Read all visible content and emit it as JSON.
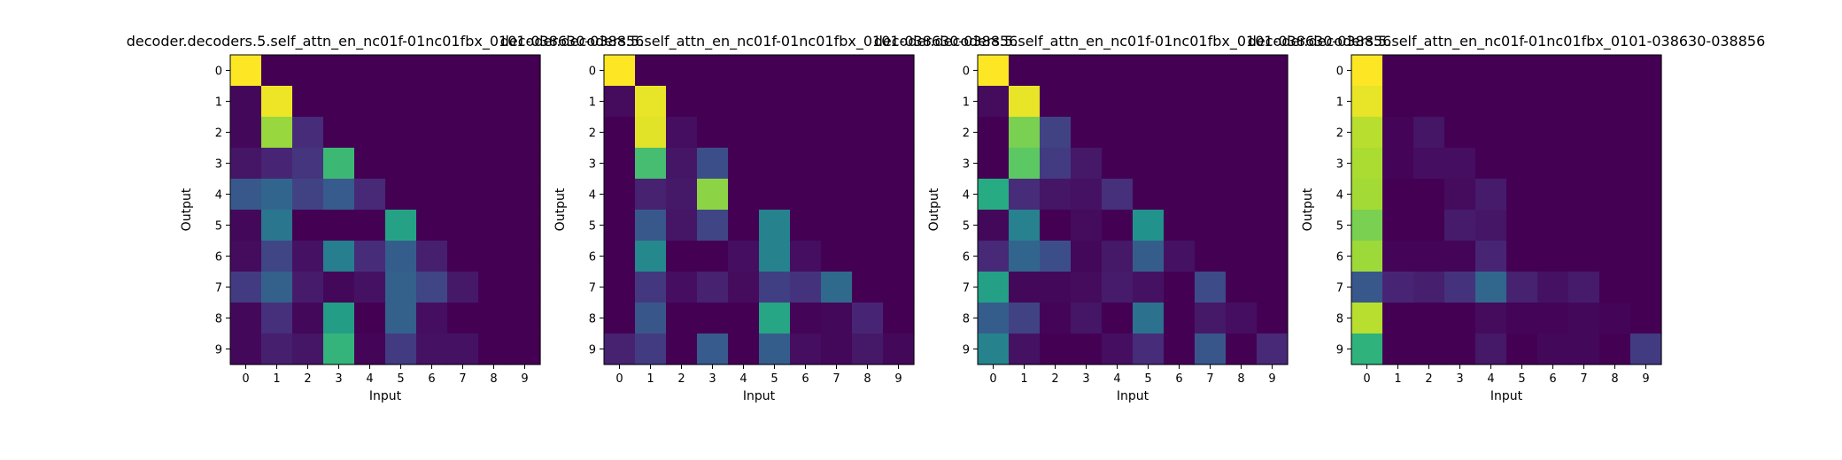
{
  "chart_data": [
    {
      "type": "heatmap",
      "title": "decoder.decoders.5.self_attn_en_nc01f-01nc01fbx_0101-038630-038856",
      "xlabel": "Input",
      "ylabel": "Output",
      "x_ticks": [
        "0",
        "1",
        "2",
        "3",
        "4",
        "5",
        "6",
        "7",
        "8",
        "9"
      ],
      "y_ticks": [
        "0",
        "1",
        "2",
        "3",
        "4",
        "5",
        "6",
        "7",
        "8",
        "9"
      ],
      "colormap": "viridis",
      "vmin": 0,
      "vmax": 1,
      "values": [
        [
          1.0,
          0.0,
          0.0,
          0.0,
          0.0,
          0.0,
          0.0,
          0.0,
          0.0,
          0.0
        ],
        [
          0.02,
          0.98,
          0.0,
          0.0,
          0.0,
          0.0,
          0.0,
          0.0,
          0.0,
          0.0
        ],
        [
          0.02,
          0.85,
          0.13,
          0.0,
          0.0,
          0.0,
          0.0,
          0.0,
          0.0,
          0.0
        ],
        [
          0.06,
          0.11,
          0.16,
          0.68,
          0.0,
          0.0,
          0.0,
          0.0,
          0.0,
          0.0
        ],
        [
          0.28,
          0.33,
          0.2,
          0.29,
          0.12,
          0.0,
          0.0,
          0.0,
          0.0,
          0.0
        ],
        [
          0.02,
          0.4,
          0.0,
          0.0,
          0.0,
          0.58,
          0.0,
          0.0,
          0.0,
          0.0
        ],
        [
          0.03,
          0.21,
          0.05,
          0.43,
          0.13,
          0.3,
          0.09,
          0.0,
          0.0,
          0.0
        ],
        [
          0.18,
          0.31,
          0.08,
          0.02,
          0.05,
          0.31,
          0.21,
          0.07,
          0.0,
          0.0
        ],
        [
          0.02,
          0.14,
          0.02,
          0.56,
          0.0,
          0.31,
          0.04,
          0.0,
          0.0,
          0.0
        ],
        [
          0.02,
          0.09,
          0.06,
          0.66,
          0.01,
          0.18,
          0.05,
          0.05,
          0.0,
          0.0
        ]
      ]
    },
    {
      "type": "heatmap",
      "title": "decoder.decoders.5.self_attn_en_nc01f-01nc01fbx_0101-038630-038856",
      "xlabel": "Input",
      "ylabel": "Output",
      "x_ticks": [
        "0",
        "1",
        "2",
        "3",
        "4",
        "5",
        "6",
        "7",
        "8",
        "9"
      ],
      "y_ticks": [
        "0",
        "1",
        "2",
        "3",
        "4",
        "5",
        "6",
        "7",
        "8",
        "9"
      ],
      "colormap": "viridis",
      "vmin": 0,
      "vmax": 1,
      "values": [
        [
          1.0,
          0.0,
          0.0,
          0.0,
          0.0,
          0.0,
          0.0,
          0.0,
          0.0,
          0.0
        ],
        [
          0.03,
          0.97,
          0.0,
          0.0,
          0.0,
          0.0,
          0.0,
          0.0,
          0.0,
          0.0
        ],
        [
          0.0,
          0.96,
          0.04,
          0.0,
          0.0,
          0.0,
          0.0,
          0.0,
          0.0,
          0.0
        ],
        [
          0.0,
          0.7,
          0.06,
          0.24,
          0.0,
          0.0,
          0.0,
          0.0,
          0.0,
          0.0
        ],
        [
          0.0,
          0.1,
          0.07,
          0.83,
          0.0,
          0.0,
          0.0,
          0.0,
          0.0,
          0.0
        ],
        [
          0.0,
          0.28,
          0.06,
          0.21,
          0.0,
          0.45,
          0.0,
          0.0,
          0.0,
          0.0
        ],
        [
          0.0,
          0.47,
          0.0,
          0.0,
          0.04,
          0.45,
          0.04,
          0.0,
          0.0,
          0.0
        ],
        [
          0.0,
          0.17,
          0.04,
          0.1,
          0.03,
          0.19,
          0.15,
          0.35,
          0.0,
          0.0
        ],
        [
          0.0,
          0.27,
          0.0,
          0.0,
          0.0,
          0.6,
          0.01,
          0.02,
          0.11,
          0.0
        ],
        [
          0.1,
          0.18,
          0.0,
          0.29,
          0.0,
          0.3,
          0.04,
          0.02,
          0.07,
          0.02
        ]
      ]
    },
    {
      "type": "heatmap",
      "title": "decoder.decoders.5.self_attn_en_nc01f-01nc01fbx_0101-038630-038856",
      "xlabel": "Input",
      "ylabel": "Output",
      "x_ticks": [
        "0",
        "1",
        "2",
        "3",
        "4",
        "5",
        "6",
        "7",
        "8",
        "9"
      ],
      "y_ticks": [
        "0",
        "1",
        "2",
        "3",
        "4",
        "5",
        "6",
        "7",
        "8",
        "9"
      ],
      "colormap": "viridis",
      "vmin": 0,
      "vmax": 1,
      "values": [
        [
          1.0,
          0.0,
          0.0,
          0.0,
          0.0,
          0.0,
          0.0,
          0.0,
          0.0,
          0.0
        ],
        [
          0.03,
          0.97,
          0.0,
          0.0,
          0.0,
          0.0,
          0.0,
          0.0,
          0.0,
          0.0
        ],
        [
          0.0,
          0.8,
          0.2,
          0.0,
          0.0,
          0.0,
          0.0,
          0.0,
          0.0,
          0.0
        ],
        [
          0.0,
          0.75,
          0.18,
          0.07,
          0.0,
          0.0,
          0.0,
          0.0,
          0.0,
          0.0
        ],
        [
          0.62,
          0.13,
          0.06,
          0.05,
          0.14,
          0.0,
          0.0,
          0.0,
          0.0,
          0.0
        ],
        [
          0.02,
          0.44,
          0.0,
          0.03,
          0.0,
          0.51,
          0.0,
          0.0,
          0.0,
          0.0
        ],
        [
          0.12,
          0.33,
          0.24,
          0.02,
          0.07,
          0.3,
          0.05,
          0.0,
          0.0,
          0.0
        ],
        [
          0.57,
          0.02,
          0.02,
          0.03,
          0.08,
          0.05,
          0.0,
          0.23,
          0.0,
          0.0
        ],
        [
          0.3,
          0.2,
          0.01,
          0.06,
          0.0,
          0.38,
          0.0,
          0.07,
          0.04,
          0.0
        ],
        [
          0.45,
          0.05,
          0.0,
          0.0,
          0.04,
          0.13,
          0.0,
          0.27,
          0.0,
          0.12
        ]
      ]
    },
    {
      "type": "heatmap",
      "title": "decoder.decoders.5.self_attn_en_nc01f-01nc01fbx_0101-038630-038856",
      "xlabel": "Input",
      "ylabel": "Output",
      "x_ticks": [
        "0",
        "1",
        "2",
        "3",
        "4",
        "5",
        "6",
        "7",
        "8",
        "9"
      ],
      "y_ticks": [
        "0",
        "1",
        "2",
        "3",
        "4",
        "5",
        "6",
        "7",
        "8",
        "9"
      ],
      "colormap": "viridis",
      "vmin": 0,
      "vmax": 1,
      "values": [
        [
          1.0,
          0.0,
          0.0,
          0.0,
          0.0,
          0.0,
          0.0,
          0.0,
          0.0,
          0.0
        ],
        [
          0.97,
          0.0,
          0.0,
          0.0,
          0.0,
          0.0,
          0.0,
          0.0,
          0.0,
          0.0
        ],
        [
          0.9,
          0.01,
          0.06,
          0.0,
          0.0,
          0.0,
          0.0,
          0.0,
          0.0,
          0.0
        ],
        [
          0.88,
          0.01,
          0.04,
          0.04,
          0.0,
          0.0,
          0.0,
          0.0,
          0.0,
          0.0
        ],
        [
          0.87,
          0.0,
          0.0,
          0.03,
          0.08,
          0.0,
          0.0,
          0.0,
          0.0,
          0.0
        ],
        [
          0.8,
          0.0,
          0.0,
          0.08,
          0.06,
          0.0,
          0.0,
          0.0,
          0.0,
          0.0
        ],
        [
          0.86,
          0.01,
          0.01,
          0.01,
          0.11,
          0.0,
          0.0,
          0.0,
          0.0,
          0.0
        ],
        [
          0.28,
          0.11,
          0.09,
          0.15,
          0.34,
          0.1,
          0.05,
          0.08,
          0.0,
          0.0
        ],
        [
          0.9,
          0.0,
          0.0,
          0.0,
          0.03,
          0.01,
          0.01,
          0.02,
          0.01,
          0.0
        ],
        [
          0.65,
          0.0,
          0.0,
          0.0,
          0.07,
          0.0,
          0.02,
          0.02,
          0.0,
          0.18
        ]
      ]
    }
  ]
}
